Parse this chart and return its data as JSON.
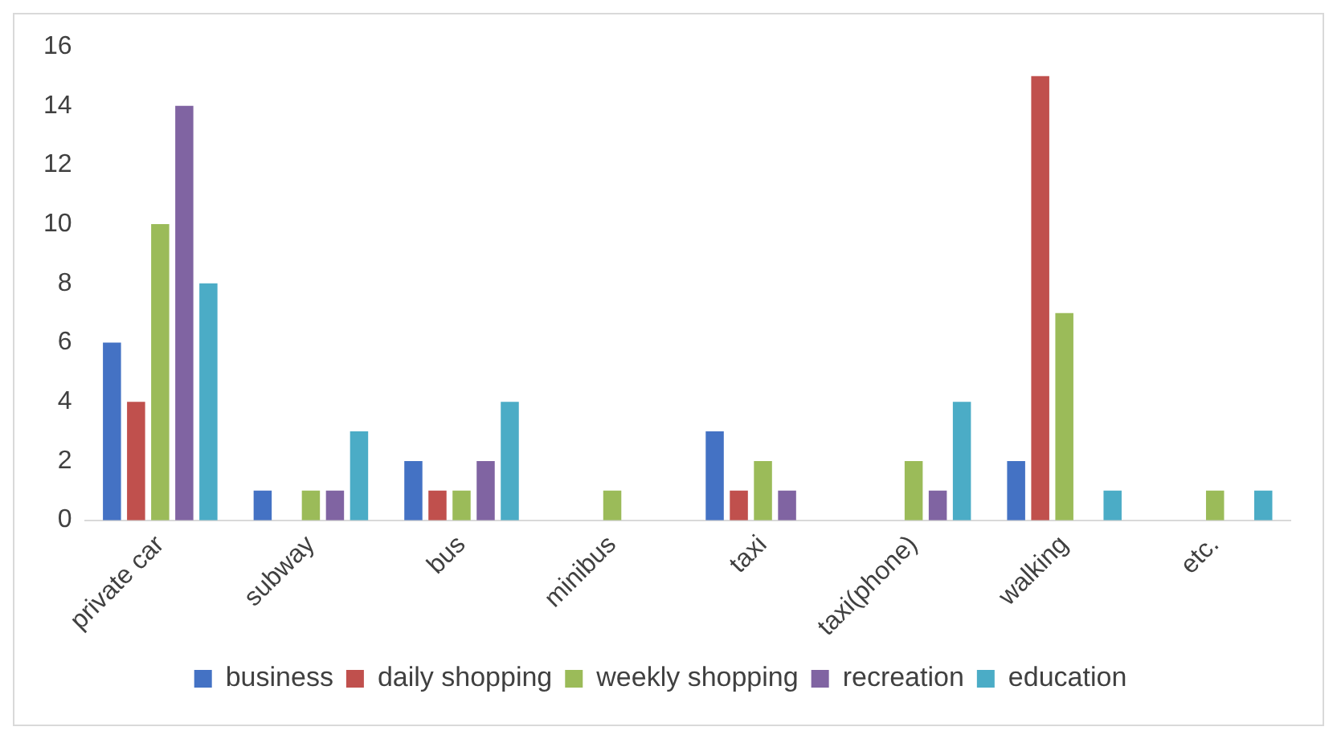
{
  "chart_data": {
    "type": "bar",
    "categories": [
      "private car",
      "subway",
      "bus",
      "minibus",
      "taxi",
      "taxi(phone)",
      "walking",
      "etc."
    ],
    "series": [
      {
        "name": "business",
        "color": "#4472c4",
        "values": [
          6,
          1,
          2,
          0,
          3,
          0,
          2,
          0
        ]
      },
      {
        "name": "daily shopping",
        "color": "#c0504d",
        "values": [
          4,
          0,
          1,
          0,
          1,
          0,
          15,
          0
        ]
      },
      {
        "name": "weekly shopping",
        "color": "#9bbb59",
        "values": [
          10,
          1,
          1,
          1,
          2,
          2,
          7,
          1
        ]
      },
      {
        "name": "recreation",
        "color": "#8064a2",
        "values": [
          14,
          1,
          2,
          0,
          1,
          1,
          0,
          0
        ]
      },
      {
        "name": "education",
        "color": "#4bacc6",
        "values": [
          8,
          3,
          4,
          0,
          0,
          4,
          1,
          1
        ]
      }
    ],
    "ylim": [
      0,
      16
    ],
    "yticks": [
      0,
      2,
      4,
      6,
      8,
      10,
      12,
      14,
      16
    ],
    "grid": false,
    "legend": "bottom"
  }
}
